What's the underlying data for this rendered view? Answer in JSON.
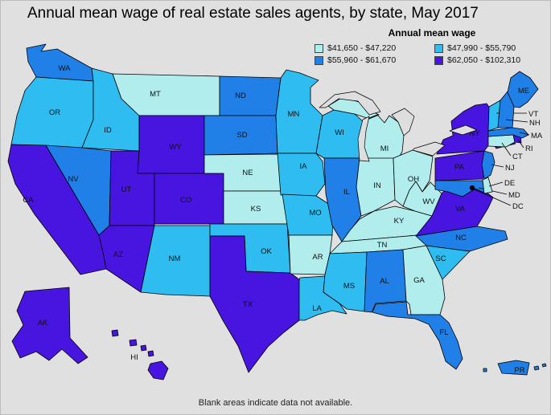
{
  "title": "Annual mean wage of real estate sales agents, by state, May 2017",
  "footer": "Blank areas indicate data not available.",
  "legend": {
    "title": "Annual mean wage",
    "categories": [
      {
        "label": "$41,650 - $47,220",
        "color": "#b2eded"
      },
      {
        "label": "$47,990 - $55,790",
        "color": "#2fbdf1"
      },
      {
        "label": "$55,960 - $61,670",
        "color": "#2080e8"
      },
      {
        "label": "$62,050 - $102,310",
        "color": "#4714e0"
      }
    ]
  },
  "map": {
    "background_color": "#e0e0e0",
    "water_color": "#dedede",
    "outline_color": "#000000",
    "dc_dot_color": "#000000",
    "states": [
      {
        "abbr": "WA",
        "bin": 2
      },
      {
        "abbr": "OR",
        "bin": 1
      },
      {
        "abbr": "CA",
        "bin": 3
      },
      {
        "abbr": "ID",
        "bin": 1
      },
      {
        "abbr": "NV",
        "bin": 2
      },
      {
        "abbr": "MT",
        "bin": 0
      },
      {
        "abbr": "WY",
        "bin": 3
      },
      {
        "abbr": "UT",
        "bin": 3
      },
      {
        "abbr": "AZ",
        "bin": 3
      },
      {
        "abbr": "CO",
        "bin": 3
      },
      {
        "abbr": "NM",
        "bin": 1
      },
      {
        "abbr": "ND",
        "bin": 2
      },
      {
        "abbr": "SD",
        "bin": 2
      },
      {
        "abbr": "NE",
        "bin": 0
      },
      {
        "abbr": "KS",
        "bin": 0
      },
      {
        "abbr": "OK",
        "bin": 1
      },
      {
        "abbr": "TX",
        "bin": 3
      },
      {
        "abbr": "MN",
        "bin": 1
      },
      {
        "abbr": "IA",
        "bin": 1
      },
      {
        "abbr": "MO",
        "bin": 1
      },
      {
        "abbr": "AR",
        "bin": 0
      },
      {
        "abbr": "LA",
        "bin": 1
      },
      {
        "abbr": "WI",
        "bin": 1
      },
      {
        "abbr": "IL",
        "bin": 2
      },
      {
        "abbr": "MI",
        "bin": 0
      },
      {
        "abbr": "IN",
        "bin": 0
      },
      {
        "abbr": "OH",
        "bin": 0
      },
      {
        "abbr": "KY",
        "bin": 0
      },
      {
        "abbr": "TN",
        "bin": 0
      },
      {
        "abbr": "MS",
        "bin": 1
      },
      {
        "abbr": "AL",
        "bin": 2
      },
      {
        "abbr": "GA",
        "bin": 0
      },
      {
        "abbr": "FL",
        "bin": 2
      },
      {
        "abbr": "SC",
        "bin": 1
      },
      {
        "abbr": "NC",
        "bin": 2
      },
      {
        "abbr": "VA",
        "bin": 3
      },
      {
        "abbr": "WV",
        "bin": 0
      },
      {
        "abbr": "PA",
        "bin": 3
      },
      {
        "abbr": "NY",
        "bin": 3
      },
      {
        "abbr": "NJ",
        "bin": 2
      },
      {
        "abbr": "CT",
        "bin": 0
      },
      {
        "abbr": "RI",
        "bin": 3
      },
      {
        "abbr": "MA",
        "bin": 2
      },
      {
        "abbr": "VT",
        "bin": 1
      },
      {
        "abbr": "NH",
        "bin": 2
      },
      {
        "abbr": "ME",
        "bin": 2
      },
      {
        "abbr": "MD",
        "bin": 2
      },
      {
        "abbr": "DE",
        "bin": 0
      },
      {
        "abbr": "DC",
        "bin": null
      },
      {
        "abbr": "AK",
        "bin": 3
      },
      {
        "abbr": "HI",
        "bin": 3
      },
      {
        "abbr": "PR",
        "bin": 2
      }
    ]
  },
  "chart_data": {
    "type": "heatmap",
    "subtype": "choropleth-us-states",
    "title": "Annual mean wage of real estate sales agents, by state, May 2017",
    "legend_title": "Annual mean wage",
    "bins": [
      "$41,650 - $47,220",
      "$47,990 - $55,790",
      "$55,960 - $61,670",
      "$62,050 - $102,310"
    ],
    "bin_colors": [
      "#b2eded",
      "#2fbdf1",
      "#2080e8",
      "#4714e0"
    ],
    "states_by_bin": {
      "$41,650 - $47,220": [
        "MT",
        "NE",
        "KS",
        "MI",
        "IN",
        "OH",
        "KY",
        "WV",
        "TN",
        "AR",
        "GA",
        "CT",
        "DE"
      ],
      "$47,990 - $55,790": [
        "OR",
        "ID",
        "NM",
        "OK",
        "MN",
        "WI",
        "IA",
        "MO",
        "MS",
        "LA",
        "SC",
        "VT"
      ],
      "$55,960 - $61,670": [
        "WA",
        "NV",
        "ND",
        "SD",
        "IL",
        "AL",
        "NC",
        "FL",
        "ME",
        "NH",
        "MA",
        "NJ",
        "MD",
        "PR"
      ],
      "$62,050 - $102,310": [
        "CA",
        "AK",
        "HI",
        "AZ",
        "UT",
        "WY",
        "CO",
        "TX",
        "NY",
        "PA",
        "VA",
        "RI"
      ]
    },
    "note": "Blank areas indicate data not available."
  }
}
